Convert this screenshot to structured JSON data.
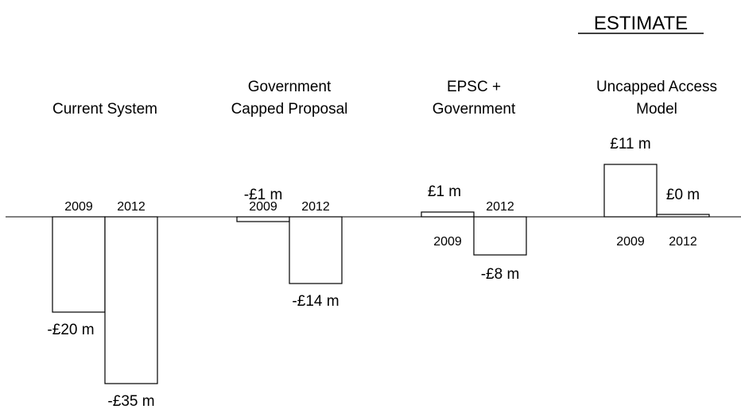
{
  "chart_data": {
    "type": "bar",
    "title": "",
    "stamp": "ESTIMATE",
    "xlabel": "",
    "ylabel": "",
    "unit_prefix": "£",
    "unit_suffix": " m",
    "groups": [
      {
        "name": "Current System",
        "label_lines": [
          "Current System"
        ],
        "bars": [
          {
            "year": "2009",
            "value": -20,
            "value_label": "-£20 m"
          },
          {
            "year": "2012",
            "value": -35,
            "value_label": "-£35 m"
          }
        ]
      },
      {
        "name": "Government Capped Proposal",
        "label_lines": [
          "Government",
          "Capped Proposal"
        ],
        "bars": [
          {
            "year": "2009",
            "value": -1,
            "value_label": "-£1 m"
          },
          {
            "year": "2012",
            "value": -14,
            "value_label": "-£14 m"
          }
        ]
      },
      {
        "name": "EPSC + Government",
        "label_lines": [
          "EPSC +",
          "Government"
        ],
        "bars": [
          {
            "year": "2009",
            "value": 1,
            "value_label": "£1 m"
          },
          {
            "year": "2012",
            "value": -8,
            "value_label": "-£8 m"
          }
        ]
      },
      {
        "name": "Uncapped Access Model",
        "label_lines": [
          "Uncapped Access",
          "Model"
        ],
        "bars": [
          {
            "year": "2009",
            "value": 11,
            "value_label": "£11 m"
          },
          {
            "year": "2012",
            "value": 0,
            "value_label": "£0 m"
          }
        ]
      }
    ],
    "grid": false,
    "legend": "none",
    "colors": {
      "bar_fill": "#ffffff",
      "bar_stroke": "#000000",
      "baseline": "#000000"
    }
  }
}
